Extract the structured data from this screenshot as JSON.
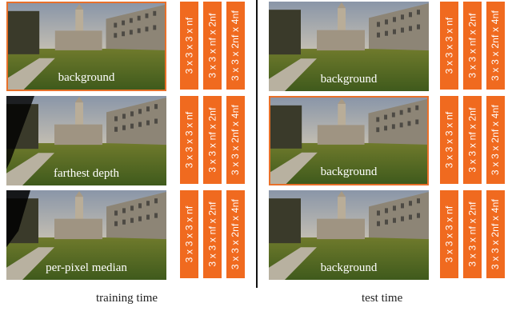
{
  "training": {
    "rows": [
      {
        "caption": "background",
        "blocks": [
          "3 x 3 x 3 x nf",
          "3 x 3 x nf x 2nf",
          "3 x 3 x 2nf x 4nf"
        ]
      },
      {
        "caption": "farthest depth",
        "blocks": [
          "3 x 3 x 3 x nf",
          "3 x 3 x nf x 2nf",
          "3 x 3 x 2nf x 4nf"
        ]
      },
      {
        "caption": "per-pixel median",
        "blocks": [
          "3 x 3 x 3 x nf",
          "3 x 3 x nf x 2nf",
          "3 x 3 x 2nf x 4nf"
        ]
      }
    ],
    "label": "training time"
  },
  "test": {
    "rows": [
      {
        "caption": "background",
        "blocks": [
          "3 x 3 x 3 x nf",
          "3 x 3 x nf x 2nf",
          "3 x 3 x 2nf x 4nf"
        ]
      },
      {
        "caption": "background",
        "blocks": [
          "3 x 3 x 3 x nf",
          "3 x 3 x nf x 2nf",
          "3 x 3 x 2nf x 4nf"
        ]
      },
      {
        "caption": "background",
        "blocks": [
          "3 x 3 x 3 x nf",
          "3 x 3 x nf x 2nf",
          "3 x 3 x 2nf x 4nf"
        ]
      }
    ],
    "label": "test time"
  },
  "colors": {
    "highlight_border": "#e8702a",
    "block_fill": "#f06a1f"
  }
}
